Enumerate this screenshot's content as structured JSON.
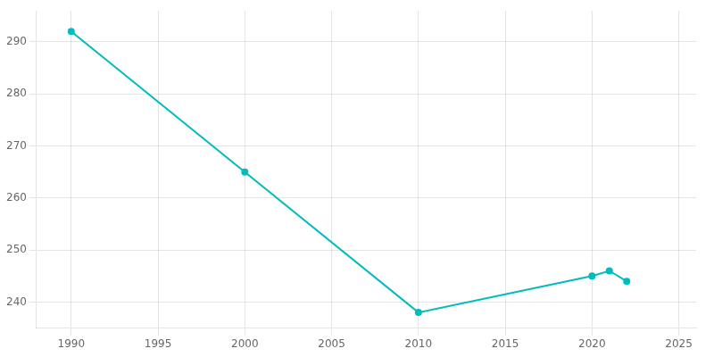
{
  "chart_data": {
    "type": "line",
    "x": [
      1990,
      2000,
      2010,
      2020,
      2021,
      2022
    ],
    "values": [
      292,
      265,
      238,
      245,
      246,
      244
    ],
    "color": "#00BCBD",
    "marker": "circle",
    "xlim": [
      1988,
      2026
    ],
    "xticks": [
      1990,
      1995,
      2000,
      2005,
      2010,
      2015,
      2020,
      2025
    ],
    "ylim": [
      235,
      296
    ],
    "yticks": [
      240,
      250,
      260,
      270,
      280,
      290
    ],
    "grid": true
  }
}
